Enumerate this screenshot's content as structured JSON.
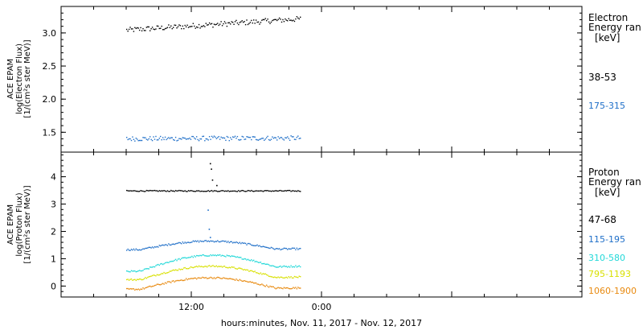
{
  "colors": {
    "black": "#000000",
    "blue": "#1f6fc8",
    "cyan": "#22d8d8",
    "yellow": "#d8e000",
    "orange": "#e88a10"
  },
  "chart_data": [
    {
      "type": "scatter",
      "panel": "electron",
      "ylabel": [
        "ACE EPAM",
        "log(Electron Flux)",
        "[1/(cm²s ster MeV)]"
      ],
      "ylim": [
        1.2,
        3.4
      ],
      "yticks": [
        1.5,
        2.0,
        2.5,
        3.0
      ],
      "ytick_labels": [
        "1.5",
        "2.0",
        "2.5",
        "3.0"
      ],
      "legend_title": [
        "Electron",
        "Energy ran",
        "[keV]"
      ],
      "series": [
        {
          "name": "38-53",
          "color": "black",
          "start": 3.05,
          "end": 3.22,
          "jitter": 0.04,
          "spikes": []
        },
        {
          "name": "175-315",
          "color": "blue",
          "start": 1.41,
          "end": 1.42,
          "jitter": 0.035,
          "spikes": []
        }
      ]
    },
    {
      "type": "scatter",
      "panel": "proton",
      "ylabel": [
        "ACE EPAM",
        "log(Proton Flux)",
        "[1/(cm²s ster MeV)]"
      ],
      "ylim": [
        -0.4,
        4.9
      ],
      "yticks": [
        0,
        1,
        2,
        3,
        4
      ],
      "ytick_labels": [
        "0",
        "1",
        "2",
        "3",
        "4"
      ],
      "legend_title": [
        "Proton",
        "Energy ran",
        "[keV]"
      ],
      "series": [
        {
          "name": "47-68",
          "color": "black",
          "start": 3.5,
          "end": 3.5,
          "jitter": 0.02,
          "bump": 0.0,
          "spikes": [
            [
              13.7,
              4.5
            ],
            [
              13.8,
              4.3
            ],
            [
              13.9,
              3.9
            ],
            [
              14.3,
              3.7
            ]
          ]
        },
        {
          "name": "115-195",
          "color": "blue",
          "start": 1.35,
          "end": 1.38,
          "jitter": 0.03,
          "bump": 0.3,
          "spikes": [
            [
              13.5,
              2.8
            ],
            [
              13.6,
              2.1
            ],
            [
              13.7,
              1.8
            ]
          ]
        },
        {
          "name": "310-580",
          "color": "cyan",
          "start": 0.55,
          "end": 0.75,
          "jitter": 0.03,
          "bump": 0.5,
          "spikes": []
        },
        {
          "name": "795-1193",
          "color": "yellow",
          "start": 0.25,
          "end": 0.35,
          "jitter": 0.03,
          "bump": 0.45,
          "spikes": []
        },
        {
          "name": "1060-1900",
          "color": "orange",
          "start": -0.1,
          "end": -0.05,
          "jitter": 0.03,
          "bump": 0.4,
          "spikes": []
        }
      ]
    }
  ],
  "x_axis": {
    "range_hours": [
      0,
      48
    ],
    "data_range_hours": [
      6,
      22
    ],
    "ticks_hours": [
      12,
      24
    ],
    "tick_labels": [
      "12:00",
      "0:00"
    ],
    "title": "hours:minutes, Nov. 11, 2017 - Nov. 12, 2017"
  }
}
